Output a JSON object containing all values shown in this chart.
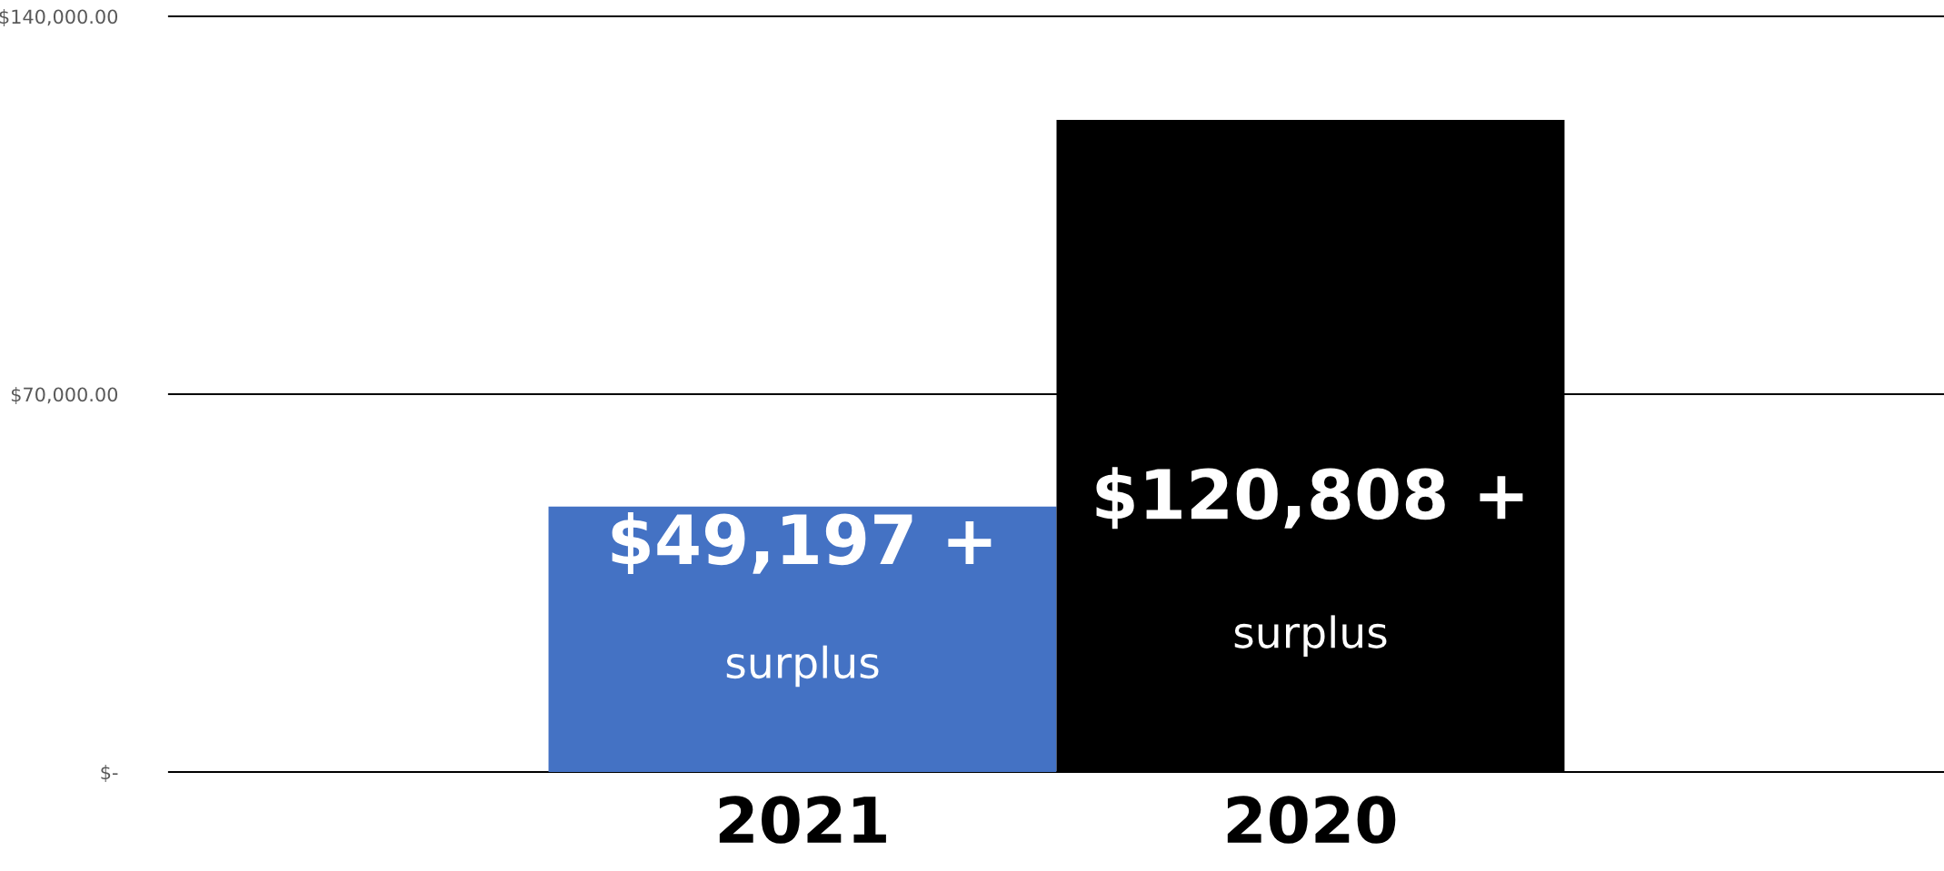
{
  "chart_data": {
    "type": "bar",
    "categories": [
      "2021",
      "2020"
    ],
    "values": [
      49197,
      120808
    ],
    "colors": [
      "#4472c4",
      "#000000"
    ],
    "value_labels": [
      "$49,197 +",
      "$120,808 +"
    ],
    "annotations": [
      "surplus",
      "surplus"
    ],
    "ylim": [
      0,
      140000
    ],
    "yticks": [
      {
        "value": 0,
        "label": "$-"
      },
      {
        "value": 70000,
        "label": "$70,000.00"
      },
      {
        "value": 140000,
        "label": "$140,000.00"
      }
    ],
    "grid": "y",
    "legend": false
  }
}
